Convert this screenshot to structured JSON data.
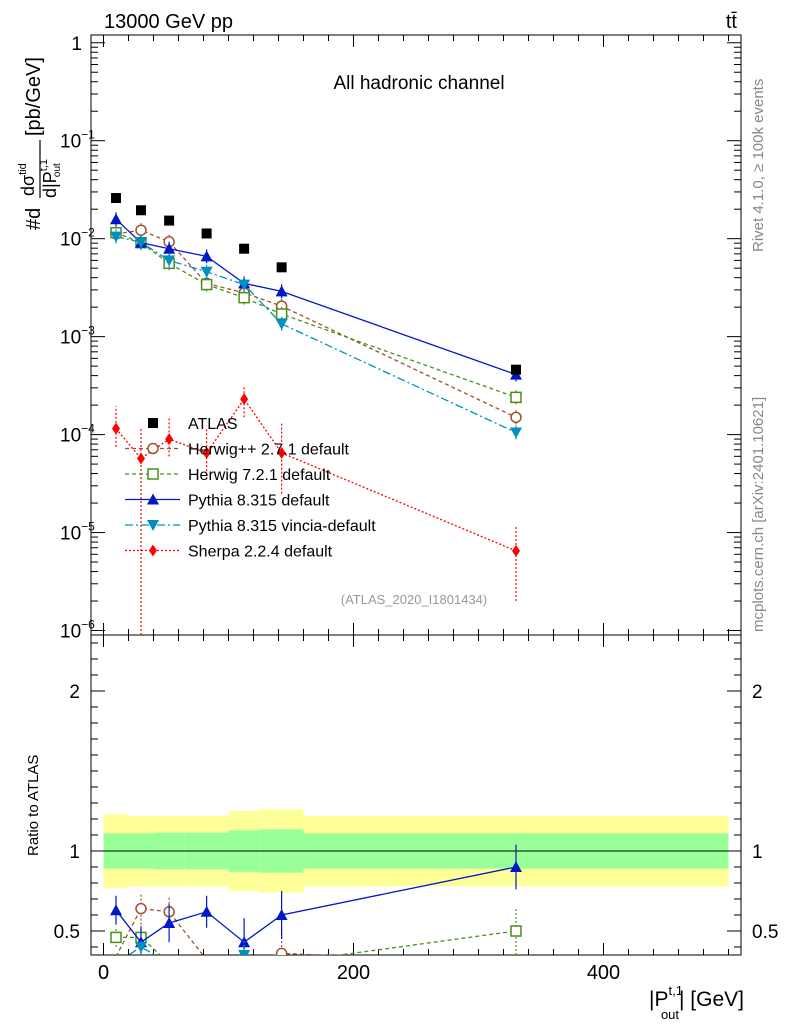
{
  "header": {
    "energy_label": "13000 GeV pp",
    "process_label": "tt̄"
  },
  "side_text": {
    "rivet": "Rivet 4.1.0, ≥ 100k events",
    "mcplots": "mcplots.cern.ch [arXiv:2401.10621]"
  },
  "chart_data": {
    "type": "line",
    "title": "All hadronic channel",
    "analysis_id": "(ATLAS_2020_I1801434)",
    "xlabel": "|P_out^{t,1}| [GeV]",
    "xlabel_main": "|P",
    "xlabel_sup": "t,1",
    "xlabel_sub": "out",
    "xlabel_tail": "| [GeV]",
    "ylabel": "#d dσ^{tid} / d|P_out^{t,1}| [pb/GeV]",
    "ylabel_lead": "#d",
    "ylabel_num": "dσ",
    "ylabel_num_sup": "tid",
    "ylabel_den": "d|P",
    "ylabel_den_sup": "t,1",
    "ylabel_den_sub": "out",
    "ylabel_units": "[pb/GeV]",
    "ratio_ylabel": "Ratio to ATLAS",
    "xlim": [
      -10,
      510
    ],
    "ylim": [
      9e-07,
      1.2
    ],
    "ratio_ylim": [
      0.35,
      2.35
    ],
    "x_ticks": [
      0,
      200,
      400
    ],
    "y_ticks": [
      {
        "value": 1,
        "label": "1"
      },
      {
        "value": 0.1,
        "label": "10",
        "exp": "−1"
      },
      {
        "value": 0.01,
        "label": "10",
        "exp": "−2"
      },
      {
        "value": 0.001,
        "label": "10",
        "exp": "−3"
      },
      {
        "value": 0.0001,
        "label": "10",
        "exp": "−4"
      },
      {
        "value": 1e-05,
        "label": "10",
        "exp": "−5"
      },
      {
        "value": 1e-06,
        "label": "10",
        "exp": "−6"
      }
    ],
    "ratio_ticks": [
      {
        "value": 0.5,
        "label": "0.5"
      },
      {
        "value": 1,
        "label": "1"
      },
      {
        "value": 2,
        "label": "2"
      }
    ],
    "bins": [
      [
        0,
        20
      ],
      [
        20,
        40
      ],
      [
        40,
        65
      ],
      [
        65,
        100
      ],
      [
        100,
        125
      ],
      [
        125,
        160
      ],
      [
        160,
        500
      ]
    ],
    "data": {
      "name": "ATLAS",
      "x": [
        10,
        30,
        52.5,
        82.5,
        112.5,
        142.5,
        330
      ],
      "y": [
        0.026,
        0.0195,
        0.0153,
        0.0113,
        0.0079,
        0.0051,
        0.00046
      ],
      "band_inner": [
        0.11,
        0.11,
        0.115,
        0.115,
        0.13,
        0.135,
        0.11
      ],
      "band_outer": [
        0.23,
        0.22,
        0.22,
        0.22,
        0.25,
        0.26,
        0.22
      ]
    },
    "series": [
      {
        "name": "Herwig++ 2.7.1 default",
        "color": "#a0522d",
        "dash": "4,3",
        "marker": "circle-open",
        "x": [
          10,
          30,
          52.5,
          82.5,
          112.5,
          142.5,
          330
        ],
        "y": [
          0.0112,
          0.0122,
          0.0093,
          0.0035,
          0.0028,
          0.00205,
          0.00015
        ],
        "ratio": [
          0.34,
          0.64,
          0.62,
          0.32,
          0.3,
          0.36,
          0.3
        ],
        "rerr": [
          0.02,
          0.1,
          0.1,
          0.1,
          0.1,
          0.15,
          0.1
        ]
      },
      {
        "name": "Herwig 7.2.1 default",
        "color": "#4a8f1a",
        "dash": "4,3",
        "marker": "square-open",
        "x": [
          10,
          30,
          52.5,
          82.5,
          112.5,
          142.5,
          330
        ],
        "y": [
          0.0115,
          0.0091,
          0.0056,
          0.0034,
          0.0025,
          0.0017,
          0.00024
        ],
        "ratio": [
          0.46,
          0.46,
          0.3,
          0.3,
          0.3,
          0.3,
          0.5
        ],
        "rerr": [
          0.06,
          0.06,
          0.08,
          0.08,
          0.1,
          0.12,
          0.15
        ]
      },
      {
        "name": "Pythia 8.315 default",
        "color": "#0018c8",
        "dash": "",
        "marker": "triangle-up",
        "x": [
          10,
          30,
          52.5,
          82.5,
          112.5,
          142.5,
          330
        ],
        "y": [
          0.0158,
          0.0091,
          0.0079,
          0.0066,
          0.0035,
          0.0029,
          0.00041
        ],
        "ratio": [
          0.63,
          0.43,
          0.55,
          0.62,
          0.43,
          0.6,
          0.9
        ],
        "rerr": [
          0.09,
          0.1,
          0.12,
          0.1,
          0.15,
          0.15,
          0.14
        ]
      },
      {
        "name": "Pythia 8.315 vincia-default",
        "color": "#0090c0",
        "dash": "8,3,2,3",
        "marker": "triangle-down",
        "x": [
          10,
          30,
          52.5,
          82.5,
          112.5,
          142.5,
          330
        ],
        "y": [
          0.0105,
          0.0092,
          0.006,
          0.0046,
          0.0034,
          0.00135,
          0.000105
        ],
        "ratio": [
          0.3,
          0.4,
          0.3,
          0.3,
          0.35,
          0.3,
          0.3
        ],
        "rerr": [
          0.05,
          0.05,
          0.08,
          0.08,
          0.1,
          0.12,
          0.1
        ]
      },
      {
        "name": "Sherpa 2.2.4 default",
        "color": "#ff0000",
        "dash": "2,2",
        "marker": "diamond",
        "x": [
          10,
          30,
          52.5,
          82.5,
          112.5,
          142.5,
          330
        ],
        "y": [
          0.000115,
          5.7e-05,
          9e-05,
          6.5e-05,
          0.00023,
          6.5e-05,
          6.5e-06
        ],
        "yerr_lo": [
          4e-05,
          5.67e-05,
          3e-05,
          3e-05,
          8e-05,
          4e-05,
          4.5e-06
        ],
        "yerr_hi": [
          8e-05,
          6e-05,
          6e-05,
          5e-05,
          8e-05,
          7e-05,
          5e-06
        ]
      }
    ]
  }
}
